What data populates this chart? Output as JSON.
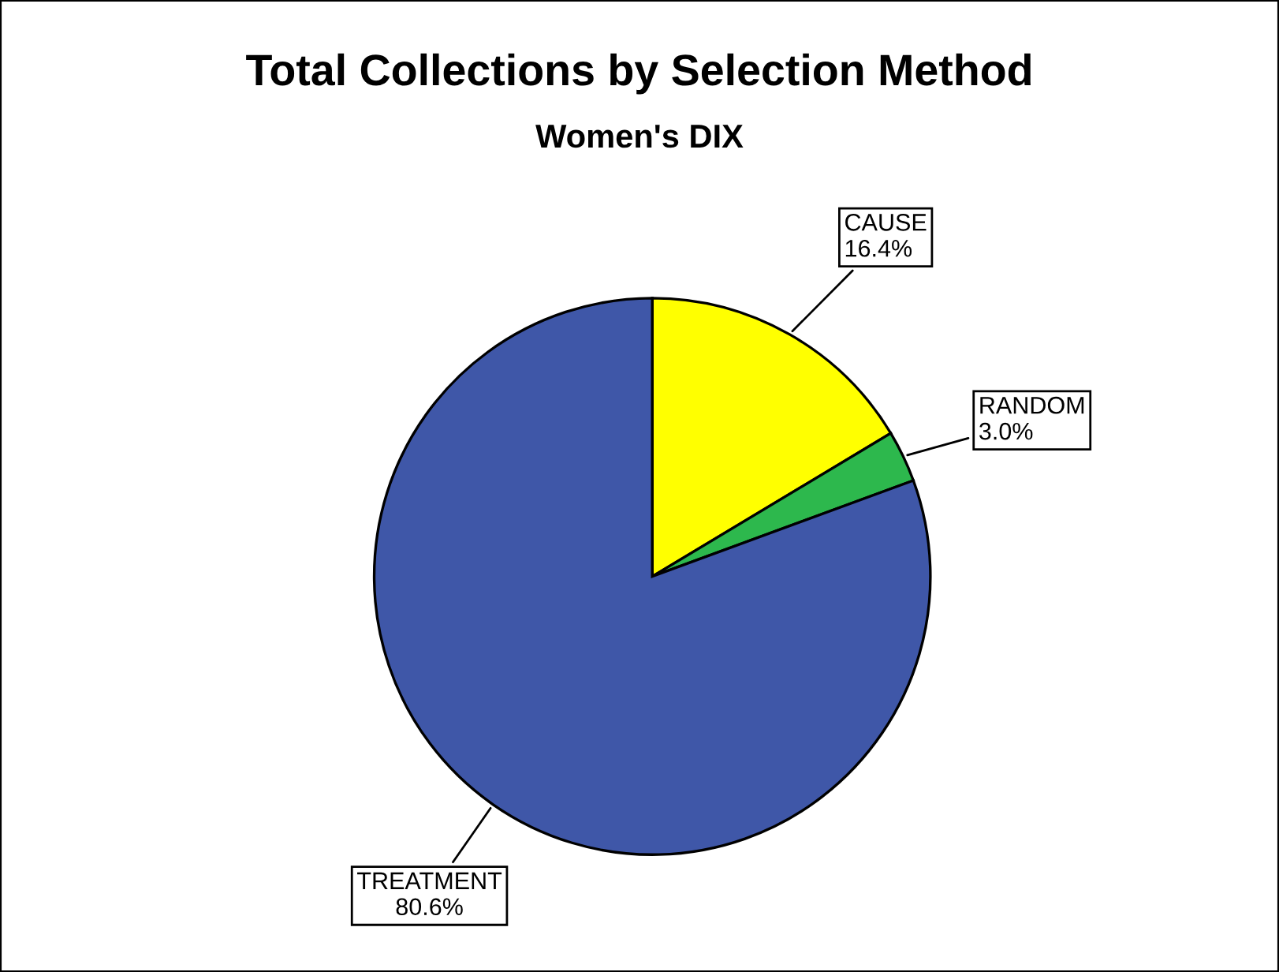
{
  "chart_data": {
    "type": "pie",
    "title": "Total Collections by Selection Method",
    "subtitle": "Women's DIX",
    "categories": [
      "CAUSE",
      "RANDOM",
      "TREATMENT"
    ],
    "values": [
      16.4,
      3.0,
      80.6
    ],
    "value_labels": [
      "16.4%",
      "3.0%",
      "80.6%"
    ],
    "colors": [
      "#ffff00",
      "#2db84d",
      "#3f57a8"
    ],
    "legend": false
  }
}
